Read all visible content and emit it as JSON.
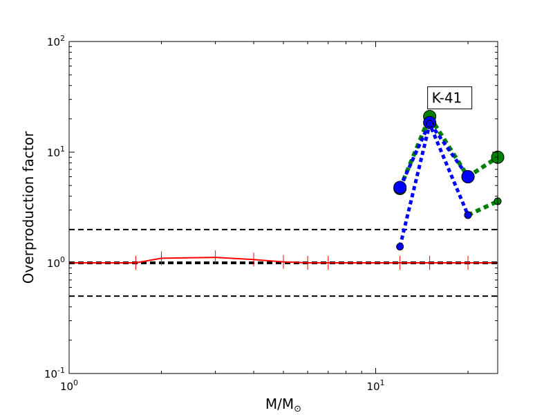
{
  "chart_data": {
    "type": "line",
    "xlabel": "M/M",
    "xlabel_sub": "⊙",
    "ylabel": "Overproduction factor",
    "xscale": "log",
    "yscale": "log",
    "xlim": [
      1,
      25
    ],
    "ylim": [
      0.1,
      100
    ],
    "x_ticks": [
      {
        "value": 1,
        "base": "10",
        "exp": "0"
      },
      {
        "value": 10,
        "base": "10",
        "exp": "1"
      }
    ],
    "y_ticks": [
      {
        "value": 0.1,
        "base": "10",
        "exp": "-1"
      },
      {
        "value": 1,
        "base": "10",
        "exp": "0"
      },
      {
        "value": 10,
        "base": "10",
        "exp": "1"
      },
      {
        "value": 100,
        "base": "10",
        "exp": "2"
      }
    ],
    "reference_lines": [
      {
        "y": 2.0,
        "style": "dashed",
        "color": "#000000",
        "width": 2
      },
      {
        "y": 1.0,
        "style": "dashed",
        "color": "#000000",
        "width": 4
      },
      {
        "y": 0.5,
        "style": "dashed",
        "color": "#000000",
        "width": 2
      }
    ],
    "series": [
      {
        "color": "#ff0000",
        "style": "solid",
        "width": 2,
        "marker": "vline",
        "x": [
          1,
          1.65,
          2,
          3,
          4,
          5,
          6,
          7,
          12,
          15,
          20,
          25
        ],
        "y": [
          1.0,
          1.0,
          1.1,
          1.12,
          1.07,
          1.02,
          1.0,
          1.0,
          1.0,
          1.0,
          1.0,
          1.0
        ]
      },
      {
        "color": "#008000",
        "style": "dotted",
        "width": 6,
        "marker": "circle",
        "marker_size": 9,
        "x": [
          12,
          15,
          20,
          25
        ],
        "y": [
          4.7,
          21.0,
          6.0,
          9.0
        ]
      },
      {
        "color": "#008000",
        "style": "dotted",
        "width": 6,
        "marker": "circle",
        "marker_size": 5,
        "x": [
          20,
          25
        ],
        "y": [
          2.7,
          3.6
        ]
      },
      {
        "color": "#0000ff",
        "style": "dotted",
        "width": 5,
        "marker": "circle",
        "marker_size": 9,
        "x": [
          12,
          15,
          20
        ],
        "y": [
          4.8,
          18.5,
          6.0
        ]
      },
      {
        "color": "#0000ff",
        "style": "dotted",
        "width": 5,
        "marker": "circle",
        "marker_size": 5,
        "x": [
          12,
          15,
          20
        ],
        "y": [
          1.4,
          18.0,
          2.7
        ]
      }
    ],
    "annotations": [
      {
        "text": "K-41",
        "x": 15,
        "y": 21.0
      }
    ]
  }
}
